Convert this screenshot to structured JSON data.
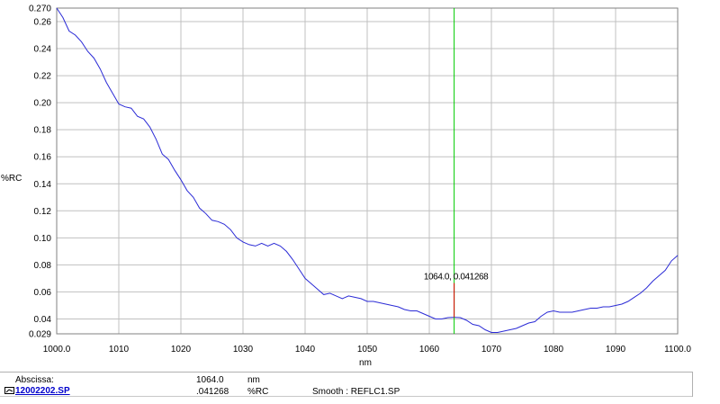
{
  "chart_data": {
    "type": "line",
    "xlabel": "nm",
    "ylabel": "%RC",
    "xlim": [
      1000,
      1100
    ],
    "ylim": [
      0.029,
      0.27
    ],
    "x_ticks": [
      "1000.0",
      "1010",
      "1020",
      "1030",
      "1040",
      "1050",
      "1060",
      "1070",
      "1080",
      "1090",
      "1100.0"
    ],
    "y_ticks": [
      "0.270",
      "0.26",
      "0.24",
      "0.22",
      "0.20",
      "0.18",
      "0.16",
      "0.14",
      "0.12",
      "0.10",
      "0.08",
      "0.06",
      "0.04",
      "0.029"
    ],
    "grid": true,
    "series": [
      {
        "color": "#2b2bd6",
        "x": [
          1000,
          1001,
          1002,
          1003,
          1004,
          1005,
          1006,
          1007,
          1008,
          1009,
          1010,
          1011,
          1012,
          1013,
          1014,
          1015,
          1016,
          1017,
          1018,
          1019,
          1020,
          1021,
          1022,
          1023,
          1024,
          1025,
          1026,
          1027,
          1028,
          1029,
          1030,
          1031,
          1032,
          1033,
          1034,
          1035,
          1036,
          1037,
          1038,
          1039,
          1040,
          1041,
          1042,
          1043,
          1044,
          1045,
          1046,
          1047,
          1048,
          1049,
          1050,
          1051,
          1052,
          1053,
          1054,
          1055,
          1056,
          1057,
          1058,
          1059,
          1060,
          1061,
          1062,
          1063,
          1064,
          1065,
          1066,
          1067,
          1068,
          1069,
          1070,
          1071,
          1072,
          1073,
          1074,
          1075,
          1076,
          1077,
          1078,
          1079,
          1080,
          1081,
          1082,
          1083,
          1084,
          1085,
          1086,
          1087,
          1088,
          1089,
          1090,
          1091,
          1092,
          1093,
          1094,
          1095,
          1096,
          1097,
          1098,
          1099,
          1100
        ],
        "y": [
          0.27,
          0.263,
          0.253,
          0.25,
          0.245,
          0.238,
          0.233,
          0.225,
          0.215,
          0.207,
          0.199,
          0.197,
          0.196,
          0.19,
          0.188,
          0.182,
          0.173,
          0.162,
          0.158,
          0.15,
          0.143,
          0.135,
          0.13,
          0.122,
          0.118,
          0.113,
          0.112,
          0.11,
          0.106,
          0.1,
          0.097,
          0.095,
          0.094,
          0.096,
          0.094,
          0.096,
          0.094,
          0.09,
          0.084,
          0.077,
          0.07,
          0.066,
          0.062,
          0.058,
          0.059,
          0.057,
          0.055,
          0.057,
          0.056,
          0.055,
          0.053,
          0.053,
          0.052,
          0.051,
          0.05,
          0.049,
          0.047,
          0.046,
          0.046,
          0.044,
          0.042,
          0.04,
          0.04,
          0.041,
          0.041268,
          0.041,
          0.039,
          0.036,
          0.035,
          0.032,
          0.03,
          0.03,
          0.031,
          0.032,
          0.033,
          0.035,
          0.037,
          0.038,
          0.042,
          0.045,
          0.046,
          0.045,
          0.045,
          0.045,
          0.046,
          0.047,
          0.048,
          0.048,
          0.049,
          0.049,
          0.05,
          0.051,
          0.053,
          0.056,
          0.059,
          0.063,
          0.068,
          0.072,
          0.076,
          0.083,
          0.087
        ]
      }
    ],
    "cursor": {
      "x": 1064.0,
      "y": 0.041268,
      "label": "1064.0, 0.041268",
      "color": "#00cc00"
    }
  },
  "info": {
    "abscissa_label": "Abscissa:",
    "abscissa_value": "1064.0",
    "abscissa_unit": "nm",
    "file_name": "12002202.SP",
    "ordinate_value": ".041268",
    "ordinate_unit": "%RC",
    "smooth_text": "Smooth : REFLC1.SP"
  }
}
